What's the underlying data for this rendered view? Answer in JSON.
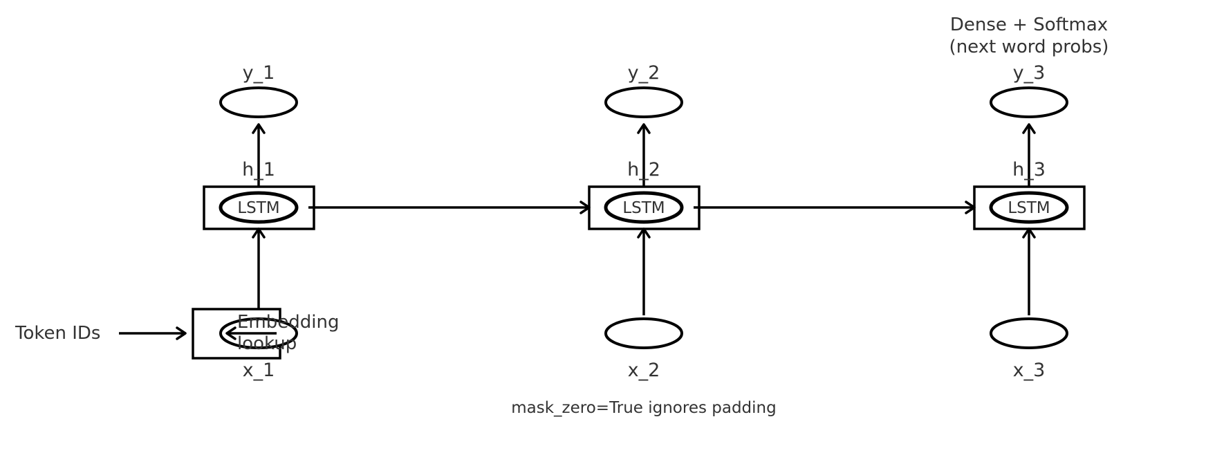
{
  "diagram": {
    "outputs": [
      "y_1",
      "y_2",
      "y_3"
    ],
    "hidden": [
      "h_1",
      "h_2",
      "h_3"
    ],
    "inputs": [
      "x_1",
      "x_2",
      "x_3"
    ],
    "cell_label": "LSTM",
    "dense_label_line1": "Dense + Softmax",
    "dense_label_line2": "(next word probs)",
    "token_ids_label": "Token IDs",
    "embedding_label_line1": "Embedding",
    "embedding_label_line2": "lookup",
    "mask_note": "mask_zero=True ignores padding"
  },
  "colors": {
    "text": "#333333",
    "stroke": "#000000",
    "background": "#ffffff"
  }
}
